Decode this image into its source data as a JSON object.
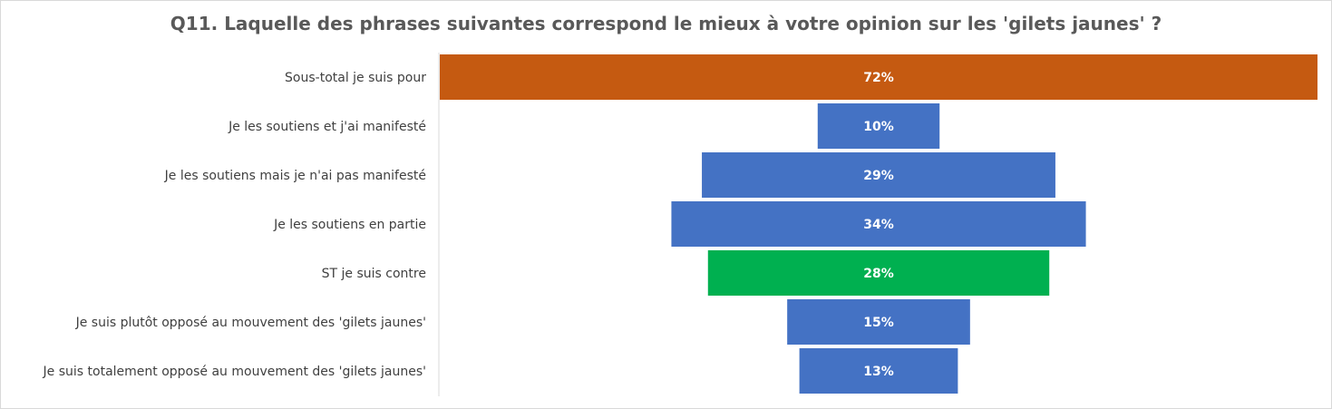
{
  "chart_data": {
    "type": "bar",
    "orientation": "horizontal",
    "style": "centered-funnel",
    "title": "Q11. Laquelle des phrases suivantes correspond le mieux à votre opinion sur les 'gilets jaunes' ?",
    "categories": [
      "Sous-total je suis pour",
      "Je les soutiens et j'ai manifesté",
      "Je les soutiens mais je n'ai pas manifesté",
      "Je les soutiens en partie",
      "ST je suis contre",
      "Je suis plutôt opposé au mouvement des 'gilets jaunes'",
      "Je suis totalement opposé au mouvement des 'gilets jaunes'"
    ],
    "values": [
      72,
      10,
      29,
      34,
      28,
      15,
      13
    ],
    "value_labels": [
      "72%",
      "10%",
      "29%",
      "34%",
      "28%",
      "15%",
      "13%"
    ],
    "bar_colors": [
      "#C55A11",
      "#4472C4",
      "#4472C4",
      "#4472C4",
      "#00B050",
      "#4472C4",
      "#4472C4"
    ],
    "xlim": [
      0,
      72
    ],
    "grid": false,
    "legend": "none"
  }
}
